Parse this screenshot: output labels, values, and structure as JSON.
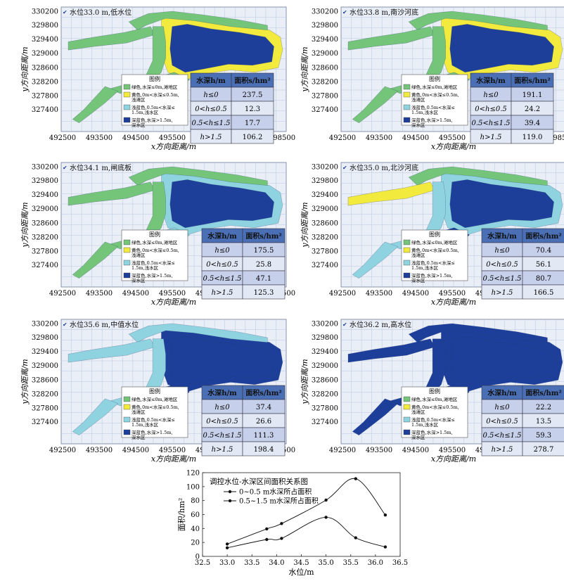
{
  "axes_text": {
    "x_label": "x方向距离/m",
    "y_label": "y方向距离/m",
    "x_ticks": [
      "492500",
      "493500",
      "494500",
      "495500",
      "496500",
      "497500",
      "498500"
    ],
    "y_ticks": [
      "330200",
      "329800",
      "329400",
      "329000",
      "328600",
      "328200",
      "327800",
      "327400"
    ]
  },
  "legend": {
    "title": "图例",
    "items": [
      {
        "color": "#74c47a",
        "lines": [
          "绿色,水深≤0m,滩地区"
        ]
      },
      {
        "color": "#f2ea3c",
        "lines": [
          "黄色,0m<水深≤0.5m,",
          "浅滩区"
        ]
      },
      {
        "color": "#8fd3e0",
        "lines": [
          "浅蓝色,0.5m<水深≤",
          "1.5m,浅水区"
        ]
      },
      {
        "color": "#1d3f9a",
        "lines": [
          "深蓝色,水深>1.5m,",
          "深水区"
        ]
      }
    ]
  },
  "table_header": {
    "col1": "水深h/m",
    "col2": "面积s/hm²"
  },
  "row_labels": [
    "h≤0",
    "0<h≤0.5",
    "0.5<h≤1.5",
    "h>1.5"
  ],
  "colors": {
    "green": "#74c47a",
    "yellow": "#f2ea3c",
    "light_blue": "#8fd3e0",
    "dark_blue": "#1d3f9a",
    "header_blue": "#4a6fb5",
    "row_light": "#e3e8f5",
    "row_mid": "#c7d0ea",
    "grid": "#b8c8e0",
    "map_bg": "#eaeef6"
  },
  "panels": [
    {
      "title": "水位33.0 m,低水位",
      "areas": [
        "237.5",
        "12.3",
        "17.7",
        "106.2"
      ]
    },
    {
      "title": "水位33.8 m,南沙河底",
      "areas": [
        "191.1",
        "24.2",
        "39.4",
        "119.0"
      ]
    },
    {
      "title": "水位34.1 m,闸底板",
      "areas": [
        "175.5",
        "25.8",
        "47.1",
        "125.3"
      ]
    },
    {
      "title": "水位35.0 m,北沙河底",
      "areas": [
        "70.4",
        "56.1",
        "80.7",
        "166.5"
      ]
    },
    {
      "title": "水位35.6 m,中值水位",
      "areas": [
        "37.4",
        "26.6",
        "111.3",
        "198.4"
      ]
    },
    {
      "title": "水位36.2 m,高水位",
      "areas": [
        "22.2",
        "13.5",
        "59.3",
        "278.7"
      ]
    }
  ],
  "chart_data": {
    "type": "line",
    "title": "调控水位-水深区间面积关系图",
    "xlabel": "水位/m",
    "ylabel": "面积/hm²",
    "xlim": [
      32.5,
      36.5
    ],
    "ylim": [
      0,
      120
    ],
    "x_ticks": [
      "32.5",
      "33.0",
      "33.5",
      "34.0",
      "34.5",
      "35.0",
      "35.5",
      "36.0",
      "36.5"
    ],
    "y_ticks": [
      "0",
      "20",
      "40",
      "60",
      "80",
      "100",
      "120"
    ],
    "legend_position": "top-left",
    "series": [
      {
        "name": "0~0.5 m水深所占面积",
        "x": [
          33.0,
          33.8,
          34.1,
          35.0,
          35.6,
          36.2
        ],
        "y": [
          12.3,
          24.2,
          25.8,
          56.1,
          26.6,
          13.5
        ]
      },
      {
        "name": "0.5~1.5 m水深所占面积",
        "x": [
          33.0,
          33.8,
          34.1,
          35.0,
          35.6,
          36.2
        ],
        "y": [
          17.7,
          39.4,
          47.1,
          80.7,
          111.3,
          59.3
        ]
      }
    ]
  }
}
